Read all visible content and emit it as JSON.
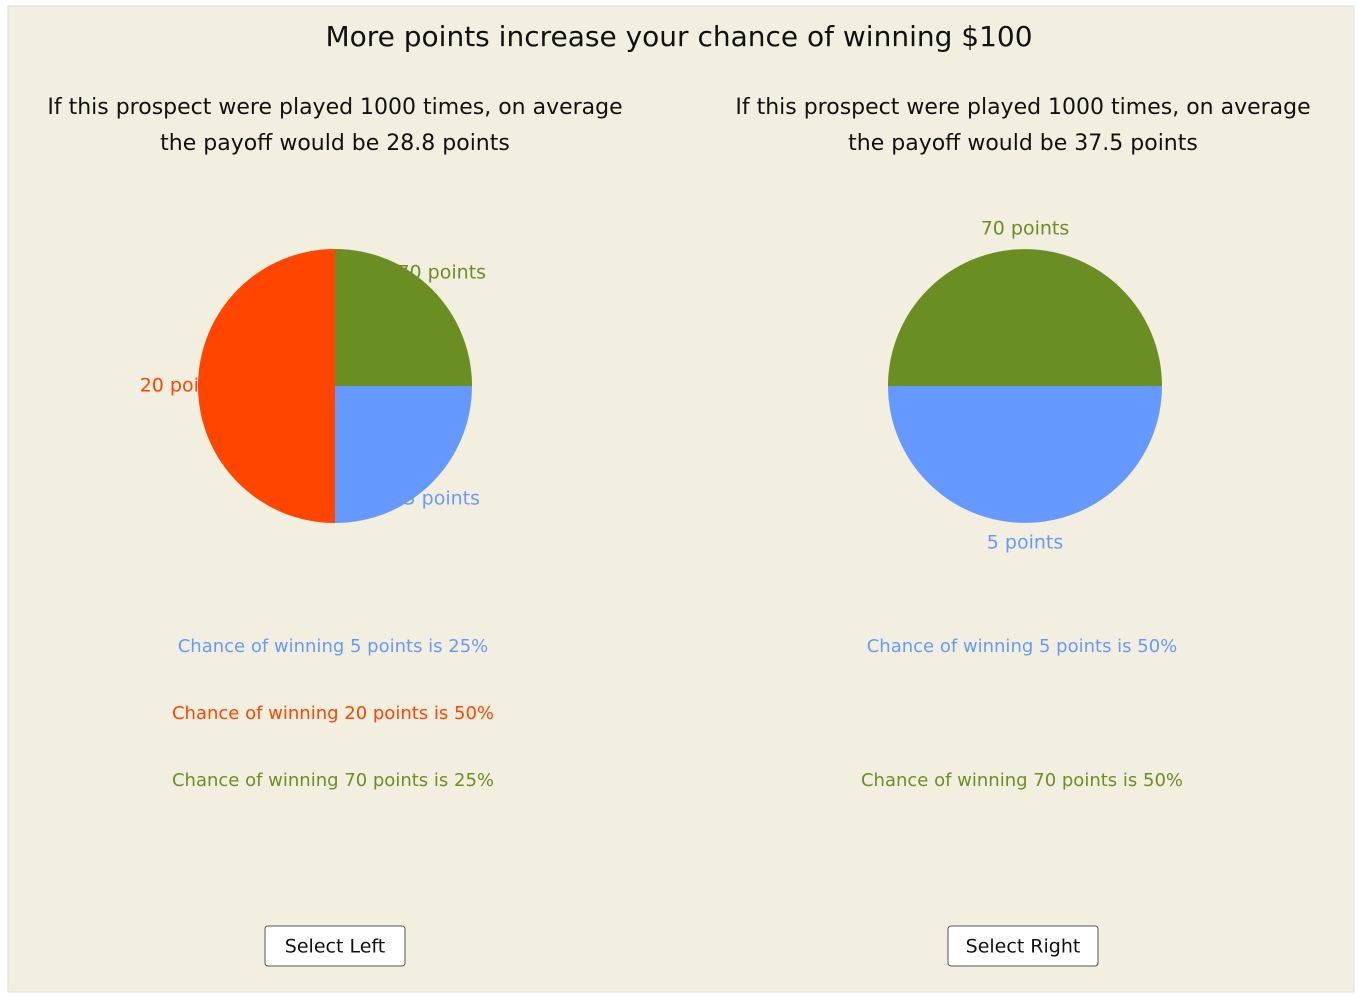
{
  "title": "More points increase your chance of winning $100",
  "chart_data": [
    {
      "type": "pie",
      "categories": [
        "5 points",
        "20 points",
        "70 points"
      ],
      "values": [
        25,
        50,
        25
      ],
      "colors": [
        "#6699ff",
        "#ff4500",
        "#6b8e23"
      ]
    },
    {
      "type": "pie",
      "categories": [
        "5 points",
        "70 points"
      ],
      "values": [
        50,
        50
      ],
      "colors": [
        "#6699ff",
        "#6b8e23"
      ]
    }
  ],
  "panels": [
    {
      "summary": [
        "If this prospect were played 1000 times, on average",
        "the payoff would be 28.8 points"
      ],
      "chances": [
        "Chance of winning 5 points is 25%",
        "Chance of winning 20 points is 50%",
        "Chance of winning 70 points is 25%"
      ],
      "button": "Select Left"
    },
    {
      "summary": [
        "If this prospect were played 1000 times, on average",
        "the payoff would be 37.5 points"
      ],
      "chances": [
        "Chance of winning 5 points is 50%",
        "Chance of winning 70 points is 50%"
      ],
      "button": "Select Right"
    }
  ]
}
